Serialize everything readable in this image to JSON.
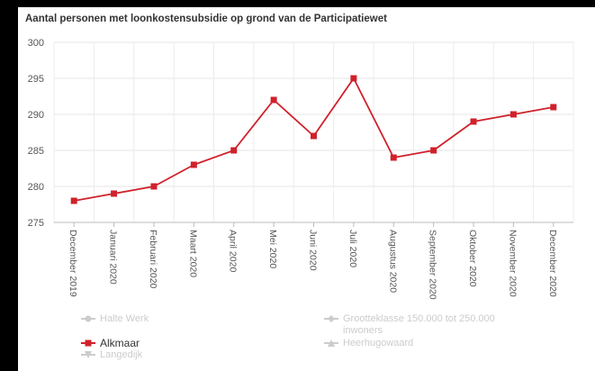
{
  "chart_data": {
    "type": "line",
    "title": "Aantal personen met loonkostensubsidie op grond van de Participatiewet",
    "xlabel": "",
    "ylabel": "",
    "ylim": [
      275,
      300
    ],
    "yticks": [
      275,
      280,
      285,
      290,
      295,
      300
    ],
    "grid": true,
    "legend_position": "bottom",
    "categories": [
      "December 2019",
      "Januari 2020",
      "Februari 2020",
      "Maart 2020",
      "April 2020",
      "Mei 2020",
      "Juni 2020",
      "Juli 2020",
      "Augustus 2020",
      "September 2020",
      "Oktober 2020",
      "November 2020",
      "December 2020"
    ],
    "series": [
      {
        "name": "Alkmaar",
        "color": "#d0212b",
        "values": [
          278,
          279,
          280,
          283,
          285,
          292,
          287,
          295,
          284,
          285,
          289,
          290,
          291
        ]
      }
    ]
  },
  "legend": {
    "items": [
      {
        "label": "Halte Werk",
        "marker": "circle-icon",
        "active": false
      },
      {
        "label": "Grootteklasse 150.000 tot 250.000 inwoners",
        "marker": "diamond-icon",
        "active": false
      },
      {
        "label": "Alkmaar",
        "marker": "square-icon",
        "active": true
      },
      {
        "label": "Heerhugowaard",
        "marker": "triangle-icon",
        "active": false
      },
      {
        "label": "Langedijk",
        "marker": "triangle-down-icon",
        "active": false
      }
    ]
  }
}
